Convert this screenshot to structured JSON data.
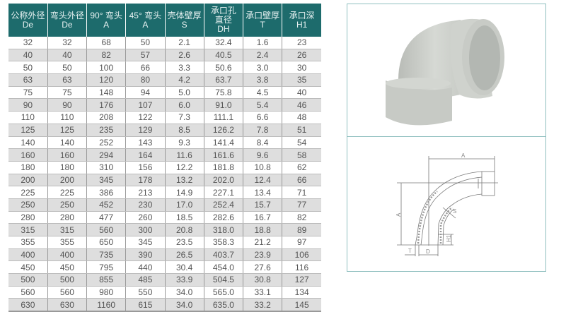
{
  "table": {
    "headers": [
      [
        "公称外径",
        "De"
      ],
      [
        "弯头外径",
        "De"
      ],
      [
        "90° 弯头",
        "A"
      ],
      [
        "45° 弯头",
        "A"
      ],
      [
        "壳体壁厚",
        "S"
      ],
      [
        "承口孔",
        "直径",
        "DH"
      ],
      [
        "承口壁厚",
        "T"
      ],
      [
        "承口深",
        "H1"
      ]
    ],
    "rows": [
      [
        "32",
        "32",
        "68",
        "50",
        "2.1",
        "32.4",
        "1.6",
        "23"
      ],
      [
        "40",
        "40",
        "82",
        "57",
        "2.6",
        "40.5",
        "2.4",
        "26"
      ],
      [
        "50",
        "50",
        "100",
        "66",
        "3.3",
        "50.6",
        "3.0",
        "30"
      ],
      [
        "63",
        "63",
        "120",
        "80",
        "4.2",
        "63.7",
        "3.8",
        "35"
      ],
      [
        "75",
        "75",
        "148",
        "94",
        "5.0",
        "75.8",
        "4.5",
        "40"
      ],
      [
        "90",
        "90",
        "176",
        "107",
        "6.0",
        "91.0",
        "5.4",
        "46"
      ],
      [
        "110",
        "110",
        "208",
        "122",
        "7.3",
        "111.1",
        "6.6",
        "48"
      ],
      [
        "125",
        "125",
        "235",
        "129",
        "8.5",
        "126.2",
        "7.8",
        "51"
      ],
      [
        "140",
        "140",
        "252",
        "143",
        "9.3",
        "141.4",
        "8.4",
        "54"
      ],
      [
        "160",
        "160",
        "294",
        "164",
        "11.6",
        "161.6",
        "9.6",
        "58"
      ],
      [
        "180",
        "180",
        "310",
        "156",
        "12.2",
        "181.8",
        "10.8",
        "62"
      ],
      [
        "200",
        "200",
        "345",
        "178",
        "13.2",
        "202.0",
        "12.4",
        "66"
      ],
      [
        "225",
        "225",
        "386",
        "213",
        "14.9",
        "227.1",
        "13.4",
        "71"
      ],
      [
        "250",
        "250",
        "452",
        "230",
        "17.0",
        "252.4",
        "15.7",
        "77"
      ],
      [
        "280",
        "280",
        "477",
        "260",
        "18.5",
        "282.6",
        "16.7",
        "82"
      ],
      [
        "315",
        "315",
        "560",
        "300",
        "20.8",
        "318.0",
        "18.8",
        "89"
      ],
      [
        "355",
        "355",
        "650",
        "345",
        "23.5",
        "358.3",
        "21.2",
        "97"
      ],
      [
        "400",
        "400",
        "735",
        "390",
        "26.5",
        "403.7",
        "23.9",
        "106"
      ],
      [
        "450",
        "450",
        "795",
        "440",
        "30.4",
        "454.0",
        "27.6",
        "116"
      ],
      [
        "500",
        "500",
        "855",
        "485",
        "33.9",
        "504.5",
        "30.8",
        "127"
      ],
      [
        "560",
        "560",
        "980",
        "550",
        "34.0",
        "565.0",
        "33.1",
        "134"
      ],
      [
        "630",
        "630",
        "1160",
        "615",
        "34.0",
        "635.0",
        "33.2",
        "145"
      ]
    ]
  },
  "diagram": {
    "label_a_top": "A",
    "label_a_side": "A",
    "label_s": "S",
    "label_t": "T",
    "label_d": "D",
    "label_h1": "H1"
  },
  "colors": {
    "header_bg": "#1d6b6c",
    "alt_row": "#dedede",
    "box_border": "#8fbfbf",
    "pipe": "#c9ccc7"
  }
}
